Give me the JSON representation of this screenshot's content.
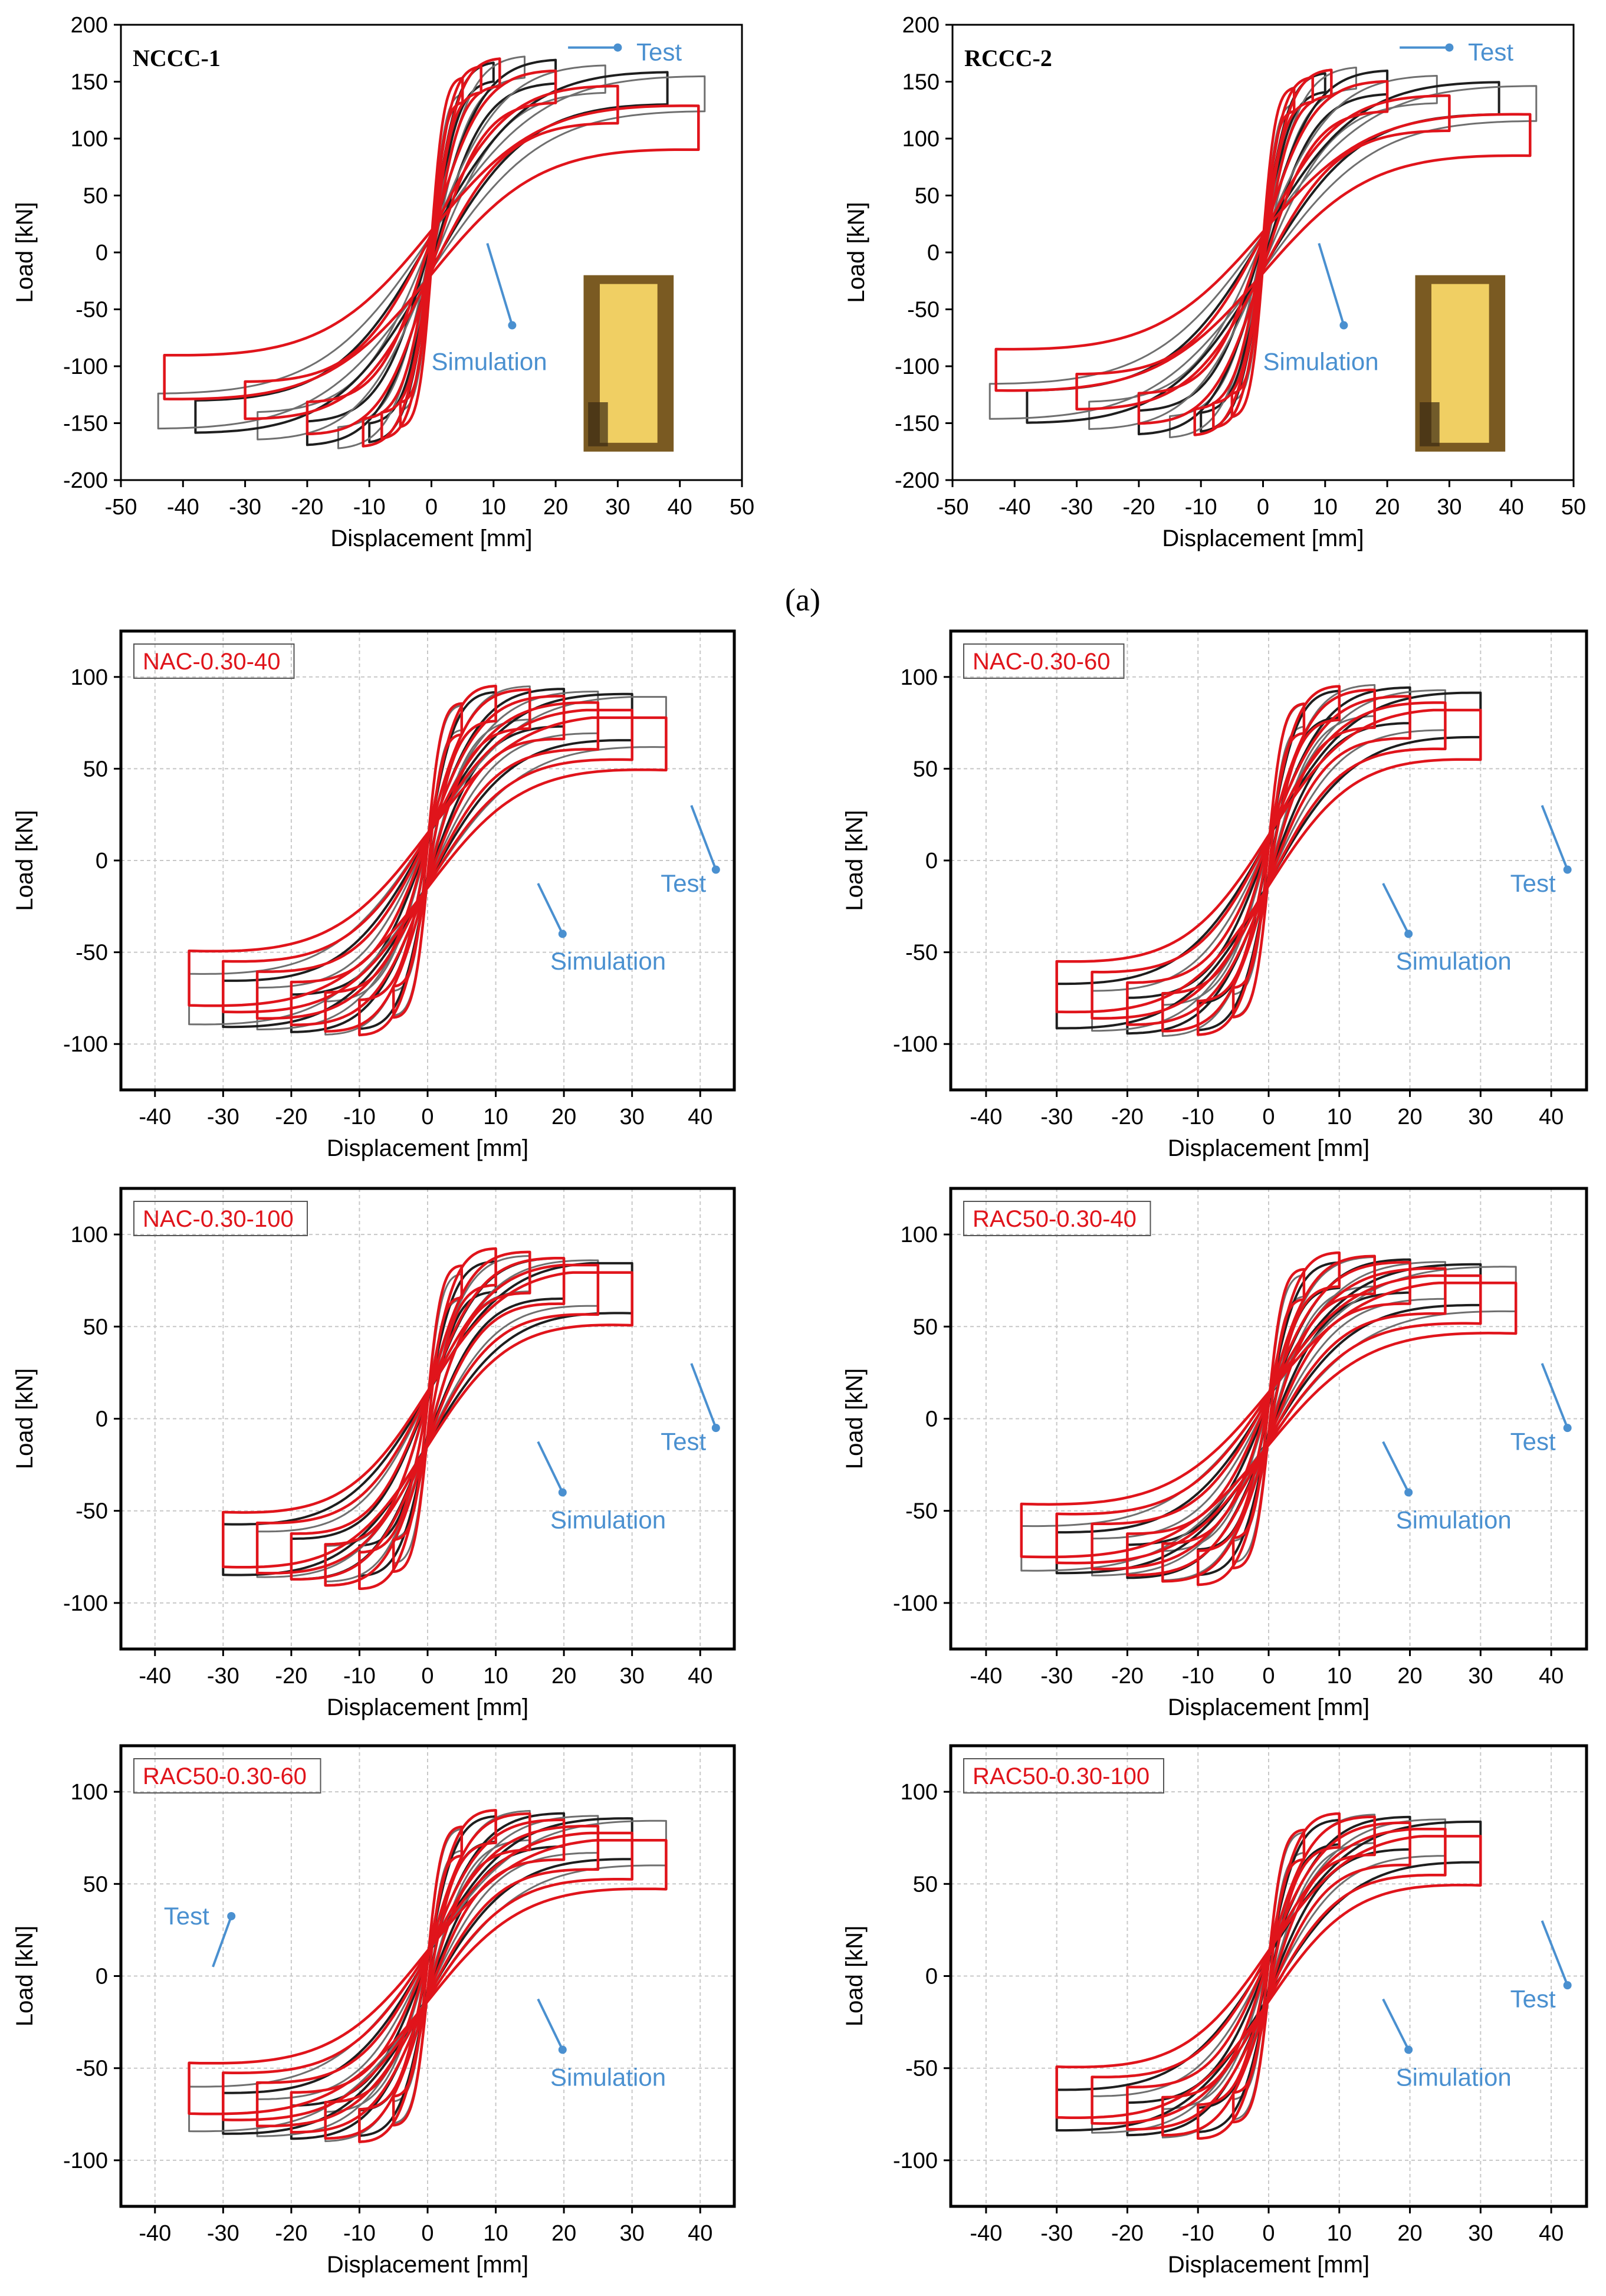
{
  "figure": {
    "panel_label": "(a)",
    "colors": {
      "test": "#6f6f6f",
      "test_dark": "#1e1e1e",
      "simulation": "#e0141b",
      "annotation": "#4a90d0",
      "label_red": "#e0141b"
    }
  },
  "chart_data": [
    {
      "type": "line",
      "id": "NCCC-1",
      "label": "NCCC-1",
      "label_style": "serif-bold",
      "xlabel": "Displacement [mm]",
      "ylabel": "Load [kN]",
      "xlim": [
        -50,
        50
      ],
      "ylim": [
        -200,
        200
      ],
      "xticks": [
        -50,
        -40,
        -30,
        -20,
        -10,
        0,
        10,
        20,
        30,
        40,
        50
      ],
      "yticks": [
        -200,
        -150,
        -100,
        -50,
        0,
        50,
        100,
        150,
        200
      ],
      "grid": false,
      "has_photo": true,
      "annotations": [
        "Test",
        "Simulation"
      ],
      "series": [
        {
          "name": "Test",
          "peak_load": 175,
          "offset": 28,
          "loops": [
            5,
            10,
            15,
            20,
            28,
            38,
            44
          ]
        },
        {
          "name": "Simulation",
          "peak_load": 172,
          "offset": 35,
          "loops": [
            5,
            8,
            11,
            20,
            30,
            43
          ]
        }
      ]
    },
    {
      "type": "line",
      "id": "RCCC-2",
      "label": "RCCC-2",
      "label_style": "serif-bold",
      "xlabel": "Displacement [mm]",
      "ylabel": "Load [kN]",
      "xlim": [
        -50,
        50
      ],
      "ylim": [
        -200,
        200
      ],
      "xticks": [
        -50,
        -40,
        -30,
        -20,
        -10,
        0,
        10,
        20,
        30,
        40,
        50
      ],
      "yticks": [
        -200,
        -150,
        -100,
        -50,
        0,
        50,
        100,
        150,
        200
      ],
      "grid": false,
      "has_photo": true,
      "annotations": [
        "Test",
        "Simulation"
      ],
      "series": [
        {
          "name": "Test",
          "peak_load": 165,
          "offset": 28,
          "loops": [
            5,
            10,
            15,
            20,
            28,
            38,
            44
          ]
        },
        {
          "name": "Simulation",
          "peak_load": 162,
          "offset": 33,
          "loops": [
            5,
            8,
            11,
            20,
            30,
            43
          ]
        }
      ]
    },
    {
      "type": "line",
      "id": "NAC-0.30-40",
      "label": "NAC-0.30-40",
      "label_style": "boxed-red",
      "xlabel": "Displacement [mm]",
      "ylabel": "Load [kN]",
      "xlim": [
        -45,
        45
      ],
      "ylim": [
        -125,
        125
      ],
      "xticks": [
        -40,
        -30,
        -20,
        -10,
        0,
        10,
        20,
        30,
        40
      ],
      "yticks": [
        -100,
        -50,
        0,
        50,
        100
      ],
      "grid": true,
      "has_photo": false,
      "annotations": [
        "Test",
        "Simulation"
      ],
      "series": [
        {
          "name": "Test",
          "peak_load": 95,
          "offset": 25,
          "loops": [
            5,
            10,
            15,
            20,
            25,
            30,
            35
          ]
        },
        {
          "name": "Simulation",
          "peak_load": 95,
          "offset": 27,
          "loops": [
            5,
            10,
            15,
            20,
            25,
            30,
            35
          ]
        }
      ]
    },
    {
      "type": "line",
      "id": "NAC-0.30-60",
      "label": "NAC-0.30-60",
      "label_style": "boxed-red",
      "xlabel": "Displacement [mm]",
      "ylabel": "Load [kN]",
      "xlim": [
        -45,
        45
      ],
      "ylim": [
        -125,
        125
      ],
      "xticks": [
        -40,
        -30,
        -20,
        -10,
        0,
        10,
        20,
        30,
        40
      ],
      "yticks": [
        -100,
        -50,
        0,
        50,
        100
      ],
      "grid": true,
      "has_photo": false,
      "annotations": [
        "Test",
        "Simulation"
      ],
      "series": [
        {
          "name": "Test",
          "peak_load": 96,
          "offset": 22,
          "loops": [
            5,
            10,
            15,
            20,
            25,
            30
          ]
        },
        {
          "name": "Simulation",
          "peak_load": 95,
          "offset": 25,
          "loops": [
            5,
            10,
            15,
            20,
            25,
            30
          ]
        }
      ]
    },
    {
      "type": "line",
      "id": "NAC-0.30-100",
      "label": "NAC-0.30-100",
      "label_style": "boxed-red",
      "xlabel": "Displacement [mm]",
      "ylabel": "Load [kN]",
      "xlim": [
        -45,
        45
      ],
      "ylim": [
        -125,
        125
      ],
      "xticks": [
        -40,
        -30,
        -20,
        -10,
        0,
        10,
        20,
        30,
        40
      ],
      "yticks": [
        -100,
        -50,
        0,
        50,
        100
      ],
      "grid": true,
      "has_photo": false,
      "annotations": [
        "Test",
        "Simulation"
      ],
      "series": [
        {
          "name": "Test",
          "peak_load": 88,
          "offset": 25,
          "loops": [
            5,
            10,
            15,
            20,
            25,
            30
          ]
        },
        {
          "name": "Simulation",
          "peak_load": 92,
          "offset": 27,
          "loops": [
            5,
            10,
            15,
            20,
            25,
            30
          ]
        }
      ]
    },
    {
      "type": "line",
      "id": "RAC50-0.30-40",
      "label": "RAC50-0.30-40",
      "label_style": "boxed-red",
      "xlabel": "Displacement [mm]",
      "ylabel": "Load [kN]",
      "xlim": [
        -45,
        45
      ],
      "ylim": [
        -125,
        125
      ],
      "xticks": [
        -40,
        -30,
        -20,
        -10,
        0,
        10,
        20,
        30,
        40
      ],
      "yticks": [
        -100,
        -50,
        0,
        50,
        100
      ],
      "grid": true,
      "has_photo": false,
      "annotations": [
        "Test",
        "Simulation"
      ],
      "series": [
        {
          "name": "Test",
          "peak_load": 88,
          "offset": 22,
          "loops": [
            5,
            10,
            15,
            20,
            25,
            30,
            35
          ]
        },
        {
          "name": "Simulation",
          "peak_load": 90,
          "offset": 26,
          "loops": [
            5,
            10,
            15,
            20,
            25,
            30,
            35
          ]
        }
      ]
    },
    {
      "type": "line",
      "id": "RAC50-0.30-60",
      "label": "RAC50-0.30-60",
      "label_style": "boxed-red",
      "xlabel": "Displacement [mm]",
      "ylabel": "Load [kN]",
      "xlim": [
        -45,
        45
      ],
      "ylim": [
        -125,
        125
      ],
      "xticks": [
        -40,
        -30,
        -20,
        -10,
        0,
        10,
        20,
        30,
        40
      ],
      "yticks": [
        -100,
        -50,
        0,
        50,
        100
      ],
      "grid": true,
      "has_photo": false,
      "annotations": [
        "Test",
        "Simulation"
      ],
      "series": [
        {
          "name": "Test",
          "peak_load": 90,
          "offset": 22,
          "loops": [
            5,
            10,
            15,
            20,
            25,
            30,
            35
          ]
        },
        {
          "name": "Simulation",
          "peak_load": 90,
          "offset": 25,
          "loops": [
            5,
            10,
            15,
            20,
            25,
            30,
            35
          ]
        }
      ]
    },
    {
      "type": "line",
      "id": "RAC50-0.30-100",
      "label": "RAC50-0.30-100",
      "label_style": "boxed-red",
      "xlabel": "Displacement [mm]",
      "ylabel": "Load [kN]",
      "xlim": [
        -45,
        45
      ],
      "ylim": [
        -125,
        125
      ],
      "xticks": [
        -40,
        -30,
        -20,
        -10,
        0,
        10,
        20,
        30,
        40
      ],
      "yticks": [
        -100,
        -50,
        0,
        50,
        100
      ],
      "grid": true,
      "has_photo": false,
      "annotations": [
        "Test",
        "Simulation"
      ],
      "series": [
        {
          "name": "Test",
          "peak_load": 88,
          "offset": 20,
          "loops": [
            5,
            10,
            15,
            20,
            25,
            30
          ]
        },
        {
          "name": "Simulation",
          "peak_load": 88,
          "offset": 25,
          "loops": [
            5,
            10,
            15,
            20,
            25,
            30
          ]
        }
      ]
    }
  ]
}
